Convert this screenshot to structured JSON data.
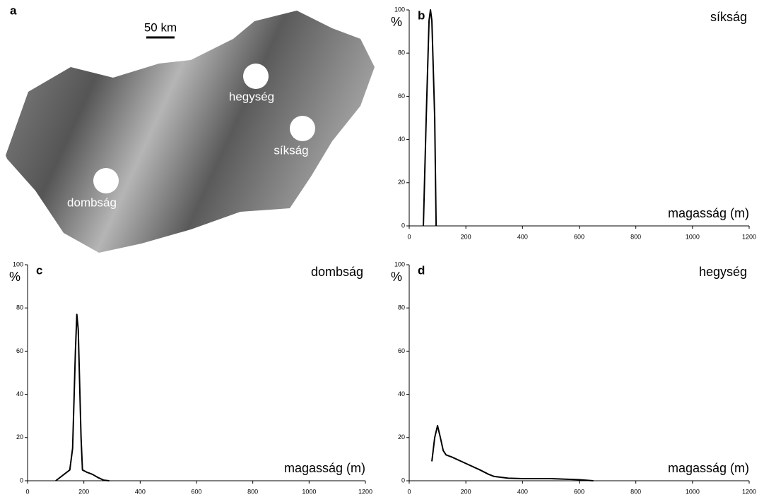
{
  "panel_a": {
    "panel": "a",
    "scale": "50 km",
    "labels": [
      "hegység",
      "síkság",
      "dombság"
    ]
  },
  "chart_data": [
    {
      "type": "line",
      "panel": "b",
      "title": "síkság",
      "y_label": "%",
      "x_label": "magasság (m)",
      "x": [
        50,
        60,
        70,
        75,
        80,
        90,
        95
      ],
      "values": [
        0,
        50,
        95,
        100,
        95,
        50,
        0
      ],
      "color": "#000000",
      "xlim": [
        0,
        1200
      ],
      "ylim": [
        0,
        100
      ],
      "xticks": [
        0,
        200,
        400,
        600,
        800,
        1000,
        1200
      ],
      "yticks": [
        0,
        20,
        40,
        60,
        80,
        100
      ]
    },
    {
      "type": "line",
      "panel": "c",
      "title": "dombság",
      "y_label": "%",
      "x_label": "magasság (m)",
      "x": [
        100,
        150,
        160,
        170,
        175,
        180,
        190,
        195,
        210,
        230,
        250,
        270,
        290
      ],
      "values": [
        0,
        5,
        15,
        60,
        77,
        70,
        20,
        5,
        4,
        3,
        1.5,
        0.3,
        0
      ],
      "color": "#000000",
      "xlim": [
        0,
        1200
      ],
      "ylim": [
        0,
        100
      ],
      "xticks": [
        0,
        200,
        400,
        600,
        800,
        1000,
        1200
      ],
      "yticks": [
        0,
        20,
        40,
        60,
        80,
        100
      ]
    },
    {
      "type": "line",
      "panel": "d",
      "title": "hegység",
      "y_label": "%",
      "x_label": "magasság (m)",
      "x": [
        80,
        90,
        100,
        110,
        120,
        130,
        150,
        200,
        250,
        280,
        300,
        350,
        400,
        500,
        600,
        650
      ],
      "values": [
        9,
        20,
        25.5,
        20,
        14,
        12,
        11,
        8,
        5,
        3,
        2,
        1.2,
        1,
        1,
        0.5,
        0
      ],
      "color": "#000000",
      "xlim": [
        0,
        1200
      ],
      "ylim": [
        0,
        100
      ],
      "xticks": [
        0,
        200,
        400,
        600,
        800,
        1000,
        1200
      ],
      "yticks": [
        0,
        20,
        40,
        60,
        80,
        100
      ]
    }
  ]
}
